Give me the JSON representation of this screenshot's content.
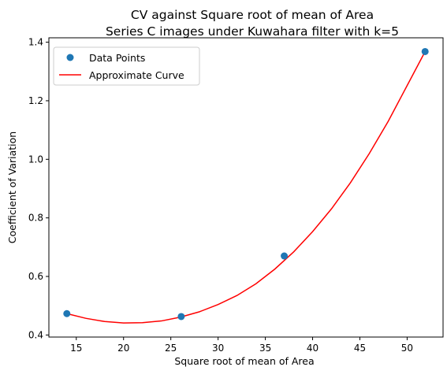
{
  "chart_data": {
    "type": "scatter",
    "title": "CV against Square root of mean of Area",
    "subtitle": "Series C images under Kuwahara filter with k=5",
    "xlabel": "Square root of mean of Area",
    "ylabel": "Coefficient of Variation",
    "xlim": [
      12.1,
      53.8
    ],
    "ylim": [
      0.393,
      1.415
    ],
    "xticks": [
      15,
      20,
      25,
      30,
      35,
      40,
      45,
      50
    ],
    "yticks": [
      0.4,
      0.6,
      0.8,
      1.0,
      1.2,
      1.4
    ],
    "ytick_labels": [
      "0.4",
      "0.6",
      "0.8",
      "1.0",
      "1.2",
      "1.4"
    ],
    "grid": false,
    "legend_position": "upper-left",
    "series": [
      {
        "name": "Data Points",
        "kind": "scatter",
        "color": "#1f77b4",
        "x": [
          14.0,
          26.1,
          37.0,
          51.9
        ],
        "y": [
          0.473,
          0.463,
          0.67,
          1.368
        ]
      },
      {
        "name": "Approximate Curve",
        "kind": "line",
        "color": "#ff0000",
        "x": [
          14.0,
          16.0,
          18.0,
          20.0,
          22.0,
          24.0,
          26.0,
          28.0,
          30.0,
          32.0,
          34.0,
          36.0,
          38.0,
          40.0,
          42.0,
          44.0,
          46.0,
          48.0,
          50.0,
          51.9
        ],
        "y": [
          0.473,
          0.457,
          0.446,
          0.441,
          0.442,
          0.448,
          0.461,
          0.479,
          0.504,
          0.535,
          0.575,
          0.625,
          0.684,
          0.753,
          0.831,
          0.92,
          1.02,
          1.13,
          1.252,
          1.368
        ]
      }
    ]
  }
}
